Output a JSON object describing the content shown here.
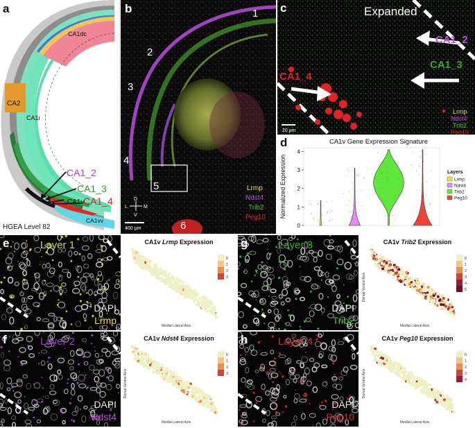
{
  "panel_a": {
    "label": "a",
    "regions": [
      "CA1dc",
      "CA2",
      "CA1i",
      "CA1vv"
    ],
    "layers": [
      {
        "name": "CA1_2",
        "color": "#b43ac7"
      },
      {
        "name": "CA1_3",
        "color": "#2d9a2d"
      },
      {
        "name": "CA1v",
        "color": "#111111"
      },
      {
        "name": "CA1_4",
        "color": "#d42020"
      }
    ],
    "footer": "HGEA Level 82"
  },
  "panel_b": {
    "label": "b",
    "numbers": [
      "1",
      "2",
      "3",
      "4",
      "5",
      "6"
    ],
    "compass": {
      "d": "D",
      "v": "V",
      "l": "L",
      "m": "M"
    },
    "scale": "400 μm",
    "legend": [
      {
        "name": "Lrmp",
        "color": "#e6e21e"
      },
      {
        "name": "Ndst4",
        "color": "#c04ee0"
      },
      {
        "name": "Trib2",
        "color": "#49c42f"
      },
      {
        "name": "Peg10",
        "color": "#e02424"
      }
    ]
  },
  "panel_c": {
    "label": "c",
    "title": "Expanded",
    "tags": [
      {
        "name": "CA1_2",
        "color": "#c04ee0"
      },
      {
        "name": "CA1_3",
        "color": "#3aa52a"
      },
      {
        "name": "CA1_4",
        "color": "#e02424"
      }
    ],
    "scale": "20 μm",
    "legend": [
      {
        "name": "Lrmp",
        "color": "#e6e21e"
      },
      {
        "name": "Ndst4",
        "color": "#c04ee0"
      },
      {
        "name": "Trib2",
        "color": "#49c42f"
      },
      {
        "name": "Peg10",
        "color": "#e02424"
      }
    ]
  },
  "panel_d": {
    "label": "d",
    "chart_data": {
      "type": "violin",
      "title": "CA1v Gene Expression Signature",
      "ylabel": "Normalized Expression",
      "ylim": [
        0,
        4.2
      ],
      "yticks": [
        0,
        1,
        2,
        3,
        4
      ],
      "categories": [
        "Lrmp",
        "Ndst4",
        "Trib2",
        "Peg10"
      ],
      "series": [
        {
          "name": "Lrmp",
          "color": "#ece23a",
          "max": 1.35,
          "median": 0.0
        },
        {
          "name": "Ndst4",
          "color": "#e48cf0",
          "max": 3.1,
          "median": 0.05
        },
        {
          "name": "Trib2",
          "color": "#5ee63a",
          "max": 4.1,
          "median": 1.5
        },
        {
          "name": "Peg10",
          "color": "#f0413a",
          "max": 4.1,
          "median": 0.2
        }
      ],
      "legend_title": "Layers",
      "legend": [
        "Lrmp",
        "Ndst4",
        "Trib2",
        "Peg10"
      ]
    }
  },
  "layer_panels": [
    {
      "id": "e",
      "layer": "Layer 1",
      "layer_color": "#d9d63a",
      "dapi": "DAPI",
      "gene": "Lrmp",
      "gene_color": "#e6e21e"
    },
    {
      "id": "g",
      "layer": "Layer 3",
      "layer_color": "#49a52f",
      "dapi": "DAPI",
      "gene": "Trib2",
      "gene_color": "#49c42f"
    },
    {
      "id": "f",
      "layer": "Layer 2",
      "layer_color": "#9a40c0",
      "dapi": "DAPI",
      "gene": "Ndst4",
      "gene_color": "#c04ee0"
    },
    {
      "id": "h",
      "layer": "Layer 4",
      "layer_color": "#d02a2a",
      "dapi": "DAPI",
      "gene": "Peg10",
      "gene_color": "#e02424"
    }
  ],
  "spatial_plots": [
    {
      "title_prefix": "CA1v ",
      "gene": "Lrmp",
      "title_suffix": " Expression",
      "xaxis": "Medial-Lateral Axis",
      "yaxis": "",
      "legend": [
        "0",
        "1",
        "2",
        "3"
      ],
      "level": 0.02
    },
    {
      "title_prefix": "CA1v ",
      "gene": "Trib2",
      "title_suffix": " Expression",
      "xaxis": "Medial-Lateral Axis",
      "yaxis": "Dorsal-Ventral Axis",
      "legend": [
        "0",
        "1",
        "2",
        "3",
        "4",
        "5"
      ],
      "level": 0.42
    },
    {
      "title_prefix": "CA1v ",
      "gene": "Ndst4",
      "title_suffix": " Expression",
      "xaxis": "Medial-Lateral Axis",
      "yaxis": "Dorsal-Ventral Axis",
      "legend": [
        "0",
        "1",
        "2",
        "3"
      ],
      "level": 0.12
    },
    {
      "title_prefix": "CA1v ",
      "gene": "Peg10",
      "title_suffix": " Expression",
      "xaxis": "Medial-Lateral Axis",
      "yaxis": "Dorsal-Ventral Axis",
      "legend": [
        "0",
        "1",
        "2",
        "3",
        "4"
      ],
      "level": 0.06
    }
  ],
  "scale_small": "20 μm"
}
